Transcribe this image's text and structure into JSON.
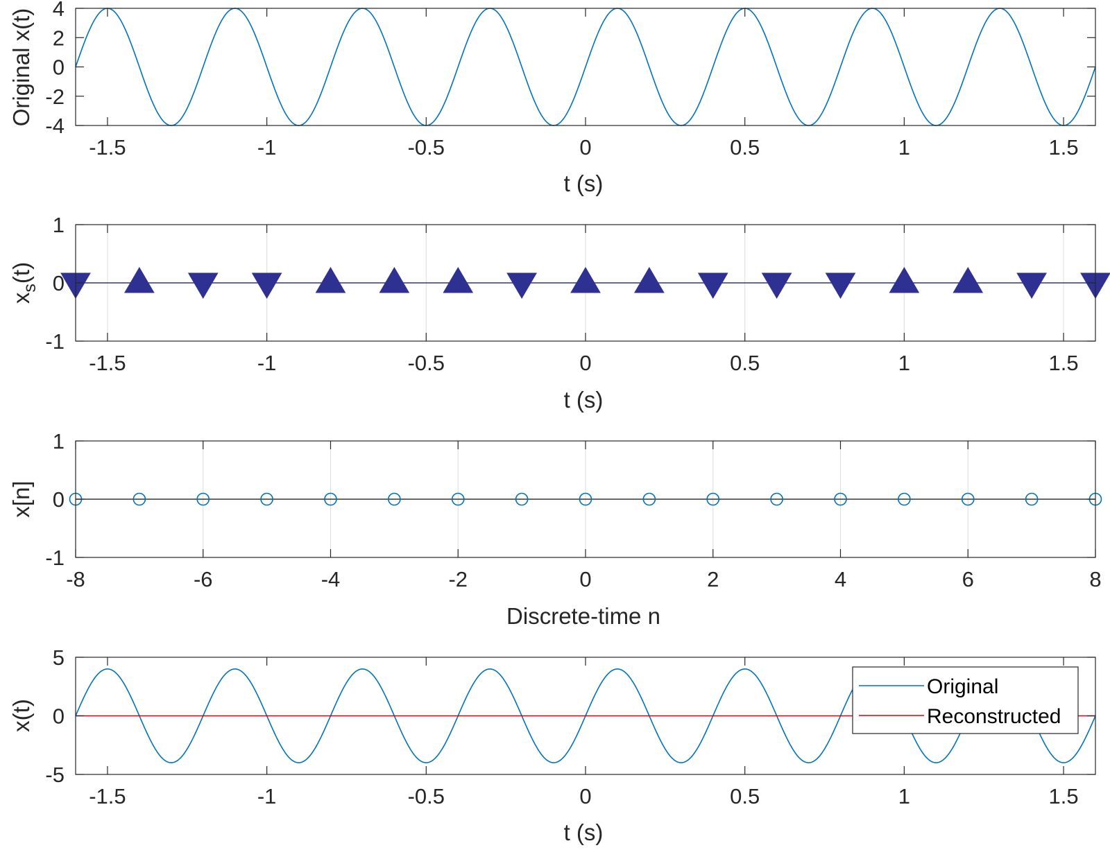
{
  "colors": {
    "axes": "#262626",
    "grid": "#dcdcdc",
    "blue_line": "#0072BD",
    "marker_navy": "#2E3192",
    "red_line": "#D9000F",
    "legend_border": "#262626"
  },
  "chart_data": [
    {
      "type": "line",
      "ylabel": "Original x(t)",
      "xlabel": "t (s)",
      "xlim": [
        -1.6,
        1.6
      ],
      "ylim": [
        -4,
        4
      ],
      "xticks": [
        -1.5,
        -1,
        -0.5,
        0,
        0.5,
        1,
        1.5
      ],
      "xtick_labels": [
        "-1.5",
        "-1",
        "-0.5",
        "0",
        "0.5",
        "1",
        "1.5"
      ],
      "yticks": [
        4,
        2,
        0,
        -2,
        -4
      ],
      "ytick_labels": [
        "4",
        "2",
        "0",
        "-2",
        "-4"
      ],
      "grid": false,
      "series": [
        {
          "amplitude": 4,
          "frequency_hz": 2.5,
          "color": "#0072BD"
        }
      ]
    },
    {
      "type": "scatter",
      "ylabel": "x_s(t)",
      "ylabel_main": "x",
      "ylabel_sub": "s",
      "ylabel_tail": "(t)",
      "xlabel": "t (s)",
      "xlim": [
        -1.6,
        1.6
      ],
      "ylim": [
        -1,
        1
      ],
      "xticks": [
        -1.5,
        -1,
        -0.5,
        0,
        0.5,
        1,
        1.5
      ],
      "xtick_labels": [
        "-1.5",
        "-1",
        "-0.5",
        "0",
        "0.5",
        "1",
        "1.5"
      ],
      "yticks": [
        1,
        0,
        -1
      ],
      "ytick_labels": [
        "1",
        "0",
        "-1"
      ],
      "grid": true,
      "baseline": 0,
      "x": [
        -1.6,
        -1.4,
        -1.2,
        -1.0,
        -0.8,
        -0.6,
        -0.4,
        -0.2,
        0.0,
        0.2,
        0.4,
        0.6,
        0.8,
        1.0,
        1.2,
        1.4,
        1.6
      ],
      "values": [
        0,
        0,
        0,
        0,
        0,
        0,
        0,
        0,
        0,
        0,
        0,
        0,
        0,
        0,
        0,
        0,
        0
      ],
      "markers": [
        "down",
        "up",
        "down",
        "down",
        "up",
        "up",
        "up",
        "down",
        "up",
        "up",
        "down",
        "down",
        "down",
        "up",
        "up",
        "down",
        "down"
      ]
    },
    {
      "type": "scatter",
      "ylabel": "x[n]",
      "xlabel": "Discrete-time n",
      "xlim": [
        -8,
        8
      ],
      "ylim": [
        -1,
        1
      ],
      "xticks": [
        -8,
        -6,
        -4,
        -2,
        0,
        2,
        4,
        6,
        8
      ],
      "xtick_labels": [
        "-8",
        "-6",
        "-4",
        "-2",
        "0",
        "2",
        "4",
        "6",
        "8"
      ],
      "yticks": [
        1,
        0,
        -1
      ],
      "ytick_labels": [
        "1",
        "0",
        "-1"
      ],
      "grid": true,
      "baseline": 0,
      "x": [
        -8,
        -7,
        -6,
        -5,
        -4,
        -3,
        -2,
        -1,
        0,
        1,
        2,
        3,
        4,
        5,
        6,
        7,
        8
      ],
      "values": [
        0,
        0,
        0,
        0,
        0,
        0,
        0,
        0,
        0,
        0,
        0,
        0,
        0,
        0,
        0,
        0,
        0
      ]
    },
    {
      "type": "line",
      "ylabel": "x(t)",
      "xlabel": "t (s)",
      "xlim": [
        -1.6,
        1.6
      ],
      "ylim": [
        -5,
        5
      ],
      "xticks": [
        -1.5,
        -1,
        -0.5,
        0,
        0.5,
        1,
        1.5
      ],
      "xtick_labels": [
        "-1.5",
        "-1",
        "-0.5",
        "0",
        "0.5",
        "1",
        "1.5"
      ],
      "yticks": [
        5,
        0,
        -5
      ],
      "ytick_labels": [
        "5",
        "0",
        "-5"
      ],
      "grid": false,
      "legend_position": "top-right",
      "series": [
        {
          "name": "Original",
          "amplitude": 4,
          "frequency_hz": 2.5,
          "color": "#0072BD"
        },
        {
          "name": "Reconstructed",
          "constant": 0,
          "color": "#D9000F"
        }
      ]
    }
  ]
}
